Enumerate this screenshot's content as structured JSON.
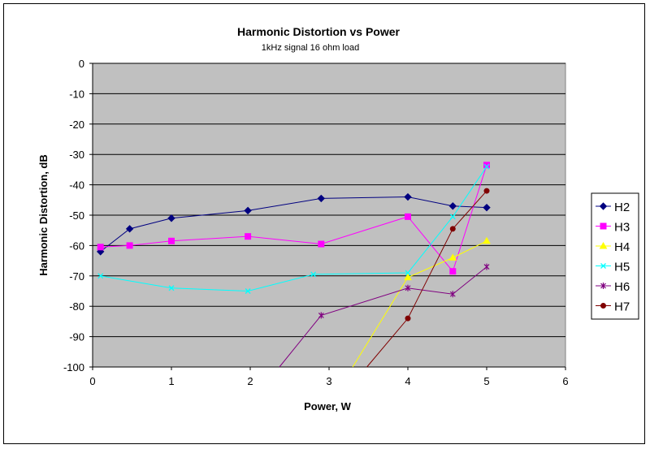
{
  "chart_data": {
    "type": "line",
    "title": "Harmonic Distortion vs Power",
    "subtitle": "1kHz signal 16 ohm load",
    "xlabel": "Power, W",
    "ylabel": "Harmonic Distortion, dB",
    "xlim": [
      0,
      6
    ],
    "ylim": [
      -100,
      0
    ],
    "xticks": [
      0,
      1,
      2,
      3,
      4,
      5,
      6
    ],
    "yticks": [
      0,
      -10,
      -20,
      -30,
      -40,
      -50,
      -60,
      -70,
      -80,
      -90,
      -100
    ],
    "grid": "horizontal",
    "legend": "right",
    "plot_background": "#c0c0c0",
    "series": [
      {
        "name": "H2",
        "color": "#000080",
        "marker": "diamond",
        "x": [
          0.1,
          0.47,
          1.0,
          1.97,
          2.9,
          4.0,
          4.57,
          5.0
        ],
        "y": [
          -62,
          -54.5,
          -51,
          -48.5,
          -44.5,
          -44,
          -47,
          -47.5
        ]
      },
      {
        "name": "H3",
        "color": "#ff00ff",
        "marker": "square",
        "x": [
          0.1,
          0.47,
          1.0,
          1.97,
          2.9,
          4.0,
          4.57,
          5.0
        ],
        "y": [
          -60.5,
          -60,
          -58.5,
          -57,
          -59.5,
          -50.5,
          -68.5,
          -33.5
        ]
      },
      {
        "name": "H4",
        "color": "#ffff00",
        "marker": "triangle",
        "x": [
          3.3,
          4.0,
          4.57,
          5.0
        ],
        "y": [
          -100,
          -70.5,
          -64,
          -58.5
        ]
      },
      {
        "name": "H5",
        "color": "#00ffff",
        "marker": "x",
        "x": [
          0.1,
          1.0,
          1.97,
          2.8,
          4.0,
          4.57,
          5.0
        ],
        "y": [
          -70,
          -74,
          -75,
          -69.5,
          -69,
          -50.5,
          -34
        ]
      },
      {
        "name": "H6",
        "color": "#800080",
        "marker": "star",
        "x": [
          2.37,
          2.9,
          4.0,
          4.57,
          5.0
        ],
        "y": [
          -100,
          -83,
          -74,
          -76,
          -67
        ]
      },
      {
        "name": "H7",
        "color": "#800000",
        "marker": "circle",
        "x": [
          3.48,
          4.0,
          4.57,
          5.0
        ],
        "y": [
          -100,
          -84,
          -54.5,
          -42
        ]
      }
    ]
  }
}
